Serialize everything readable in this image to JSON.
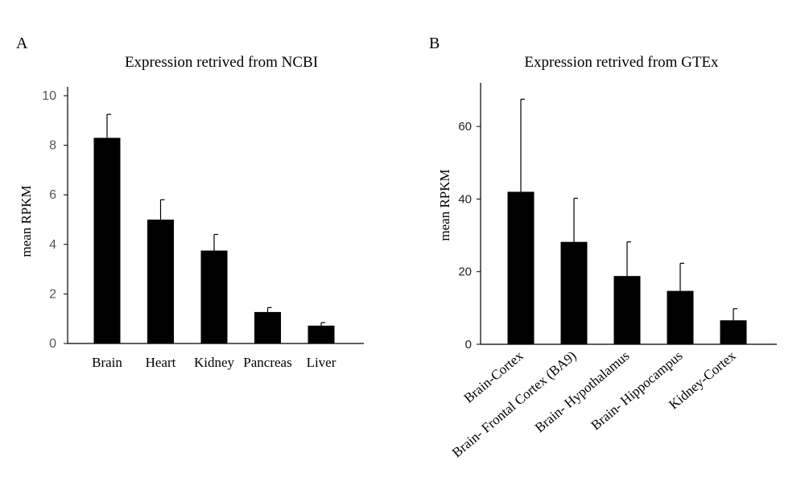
{
  "chart_data": [
    {
      "panel_label": "A",
      "type": "bar",
      "title": "Expression retrived from NCBI",
      "xlabel": "",
      "ylabel": "mean RPKM",
      "ylim": [
        0,
        10
      ],
      "yticks": [
        0,
        2,
        4,
        6,
        8,
        10
      ],
      "grid": false,
      "categories": [
        "Brain",
        "Heart",
        "Kidney",
        "Pancreas",
        "Liver"
      ],
      "values": [
        8.3,
        5.0,
        3.75,
        1.27,
        0.72
      ],
      "errors": [
        0.95,
        0.8,
        0.65,
        0.18,
        0.12
      ],
      "bar_color": "#000000"
    },
    {
      "panel_label": "B",
      "type": "bar",
      "title": "Expression retrived from GTEx",
      "xlabel": "",
      "ylabel": "mean RPKM",
      "ylim": [
        0,
        72
      ],
      "yticks": [
        0,
        20,
        40,
        60
      ],
      "grid": false,
      "categories": [
        "Brain-Cortex",
        "Brain- Frontal Cortex (BA9)",
        "Brain- Hypothalamus",
        "Brain- Hippocampus",
        "Kidney-Cortex"
      ],
      "values": [
        42,
        28.2,
        18.8,
        14.7,
        6.6
      ],
      "errors": [
        25.5,
        12,
        9.4,
        7.6,
        3.2
      ],
      "bar_color": "#000000"
    }
  ]
}
